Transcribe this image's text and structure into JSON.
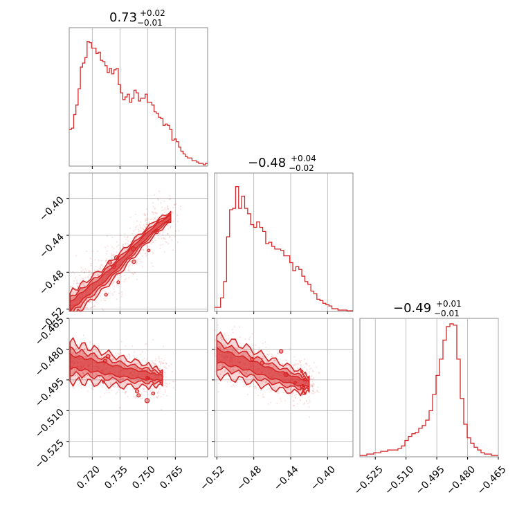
{
  "chart_data": {
    "type": "corner",
    "color": "#d62728",
    "grid": true,
    "parameters": [
      {
        "title": {
          "value": "0.73",
          "plus": "+0.02",
          "minus": "−0.01"
        },
        "range": [
          0.7075,
          0.7825
        ],
        "ticks": [
          0.72,
          0.735,
          0.75,
          0.765
        ],
        "tick_labels": [
          "0.720",
          "0.735",
          "0.750",
          "0.765"
        ],
        "histogram": [
          0.27,
          0.28,
          0.38,
          0.45,
          0.57,
          0.73,
          0.76,
          0.8,
          0.92,
          0.91,
          0.87,
          0.87,
          0.83,
          0.84,
          0.78,
          0.77,
          0.74,
          0.69,
          0.72,
          0.68,
          0.71,
          0.72,
          0.6,
          0.54,
          0.49,
          0.51,
          0.53,
          0.47,
          0.5,
          0.56,
          0.54,
          0.48,
          0.5,
          0.5,
          0.53,
          0.47,
          0.47,
          0.45,
          0.4,
          0.39,
          0.36,
          0.35,
          0.3,
          0.31,
          0.3,
          0.27,
          0.19,
          0.2,
          0.18,
          0.14,
          0.11,
          0.09,
          0.07,
          0.06,
          0.06,
          0.04,
          0.04,
          0.03,
          0.02,
          0.02,
          0.01,
          0.02
        ]
      },
      {
        "title": {
          "value": "−0.48",
          "plus": "+0.04",
          "minus": "−0.02"
        },
        "range": [
          -0.5225,
          -0.3725
        ],
        "ticks": [
          -0.52,
          -0.48,
          -0.44,
          -0.4
        ],
        "tick_labels": [
          "−0.52",
          "−0.48",
          "−0.44",
          "−0.40"
        ],
        "histogram": [
          0.03,
          0.03,
          0.1,
          0.22,
          0.55,
          0.75,
          0.76,
          0.92,
          0.76,
          0.85,
          0.76,
          0.72,
          0.64,
          0.62,
          0.66,
          0.62,
          0.59,
          0.5,
          0.51,
          0.48,
          0.46,
          0.46,
          0.45,
          0.41,
          0.41,
          0.36,
          0.3,
          0.33,
          0.31,
          0.26,
          0.22,
          0.2,
          0.15,
          0.13,
          0.09,
          0.08,
          0.06,
          0.05,
          0.04,
          0.02,
          0.02,
          0.01,
          0.01,
          0.01,
          0.005,
          0.005
        ]
      },
      {
        "title": {
          "value": "−0.49",
          "plus": "+0.01",
          "minus": "−0.01"
        },
        "range": [
          -0.5325,
          -0.465
        ],
        "ticks": [
          -0.525,
          -0.51,
          -0.495,
          -0.48,
          -0.465
        ],
        "tick_labels": [
          "−0.525",
          "−0.510",
          "−0.495",
          "−0.480",
          "−0.465"
        ],
        "histogram": [
          0.01,
          0.01,
          0.02,
          0.02,
          0.03,
          0.03,
          0.04,
          0.04,
          0.05,
          0.05,
          0.05,
          0.06,
          0.08,
          0.12,
          0.15,
          0.17,
          0.18,
          0.21,
          0.23,
          0.27,
          0.34,
          0.46,
          0.6,
          0.72,
          0.86,
          0.96,
          0.98,
          0.97,
          0.72,
          0.43,
          0.24,
          0.14,
          0.1,
          0.07,
          0.05,
          0.03,
          0.02,
          0.02,
          0.01,
          0.01
        ]
      }
    ],
    "pairs": [
      {
        "x_param": 0,
        "y_param": 1,
        "ridge": [
          [
            0.708,
            -0.517
          ],
          [
            0.715,
            -0.505
          ],
          [
            0.725,
            -0.489
          ],
          [
            0.735,
            -0.47
          ],
          [
            0.745,
            -0.449
          ],
          [
            0.755,
            -0.43
          ],
          [
            0.7625,
            -0.42
          ]
        ],
        "core_width": 0.006,
        "spread": 0.011
      },
      {
        "x_param": 0,
        "y_param": 2,
        "ridge": [
          [
            0.708,
            -0.486
          ],
          [
            0.72,
            -0.488
          ],
          [
            0.735,
            -0.491
          ],
          [
            0.75,
            -0.493
          ],
          [
            0.758,
            -0.494
          ]
        ],
        "core_width": 0.004,
        "spread": 0.01
      },
      {
        "x_param": 1,
        "y_param": 2,
        "ridge": [
          [
            -0.52,
            -0.483
          ],
          [
            -0.49,
            -0.487
          ],
          [
            -0.46,
            -0.492
          ],
          [
            -0.43,
            -0.496
          ],
          [
            -0.42,
            -0.497
          ]
        ],
        "core_width": 0.004,
        "spread": 0.01
      }
    ]
  }
}
